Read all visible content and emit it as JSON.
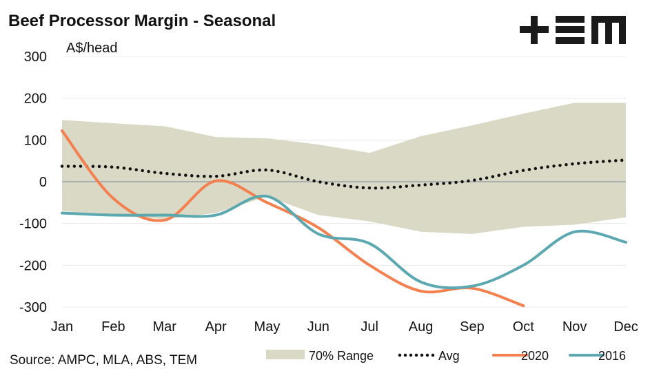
{
  "chart_data": {
    "type": "line",
    "title": "Beef Processor Margin - Seasonal",
    "ylabel": "A$/head",
    "xlabel": "",
    "ylim": [
      -300,
      300
    ],
    "yticks": [
      "300",
      "200",
      "100",
      "0",
      "-100",
      "-200",
      "-300"
    ],
    "ytick_values": [
      300,
      200,
      100,
      0,
      -100,
      -200,
      -300
    ],
    "categories": [
      "Jan",
      "Feb",
      "Mar",
      "Apr",
      "May",
      "Jun",
      "Jul",
      "Aug",
      "Sep",
      "Oct",
      "Nov",
      "Dec"
    ],
    "range": {
      "name": "70% Range",
      "upper": [
        148,
        140,
        133,
        107,
        104,
        89,
        69,
        109,
        135,
        163,
        189,
        189
      ],
      "lower": [
        -70,
        -80,
        -90,
        -75,
        -35,
        -80,
        -95,
        -120,
        -125,
        -108,
        -103,
        -85
      ],
      "color": "#d9d9c6"
    },
    "series": [
      {
        "name": "Avg",
        "values": [
          37,
          35,
          20,
          13,
          28,
          0,
          -15,
          -8,
          3,
          27,
          43,
          52
        ],
        "color": "#111111",
        "style": "dotted"
      },
      {
        "name": "2020",
        "values": [
          122,
          -40,
          -92,
          2,
          -50,
          -110,
          -200,
          -262,
          -255,
          -297,
          null,
          null
        ],
        "color": "#f47f4f",
        "style": "solid"
      },
      {
        "name": "2016",
        "values": [
          -75,
          -80,
          -80,
          -80,
          -35,
          -125,
          -148,
          -240,
          -250,
          -200,
          -120,
          -145
        ],
        "color": "#5ba8b0",
        "style": "solid"
      }
    ],
    "grid": true,
    "legend_placement": "bottom"
  },
  "source": "Source: AMPC, MLA, ABS, TEM",
  "logo_text": "+EM"
}
